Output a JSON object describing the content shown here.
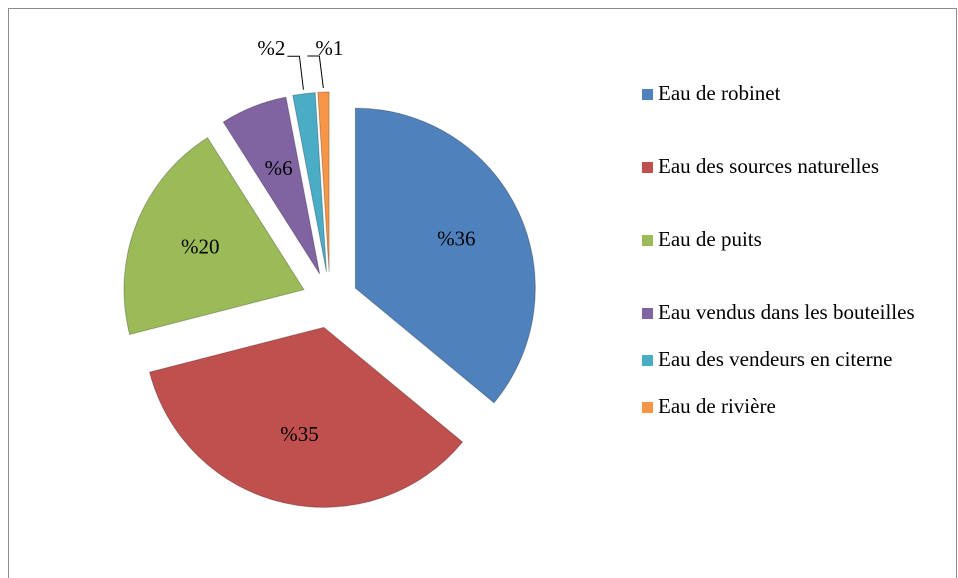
{
  "chart_data": {
    "type": "pie",
    "categories": [
      "Eau de robinet",
      "Eau des sources naturelles",
      "Eau de puits",
      "Eau vendus dans les bouteilles",
      "Eau des vendeurs en citerne",
      "Eau de rivière"
    ],
    "values": [
      36,
      35,
      20,
      6,
      2,
      1
    ],
    "value_labels": [
      "%36",
      "%35",
      "%20",
      "%6",
      "%2",
      "%1"
    ],
    "colors": [
      "#4f81bd",
      "#c0504d",
      "#9bbb59",
      "#8064a2",
      "#4bacc6",
      "#f79646"
    ]
  }
}
